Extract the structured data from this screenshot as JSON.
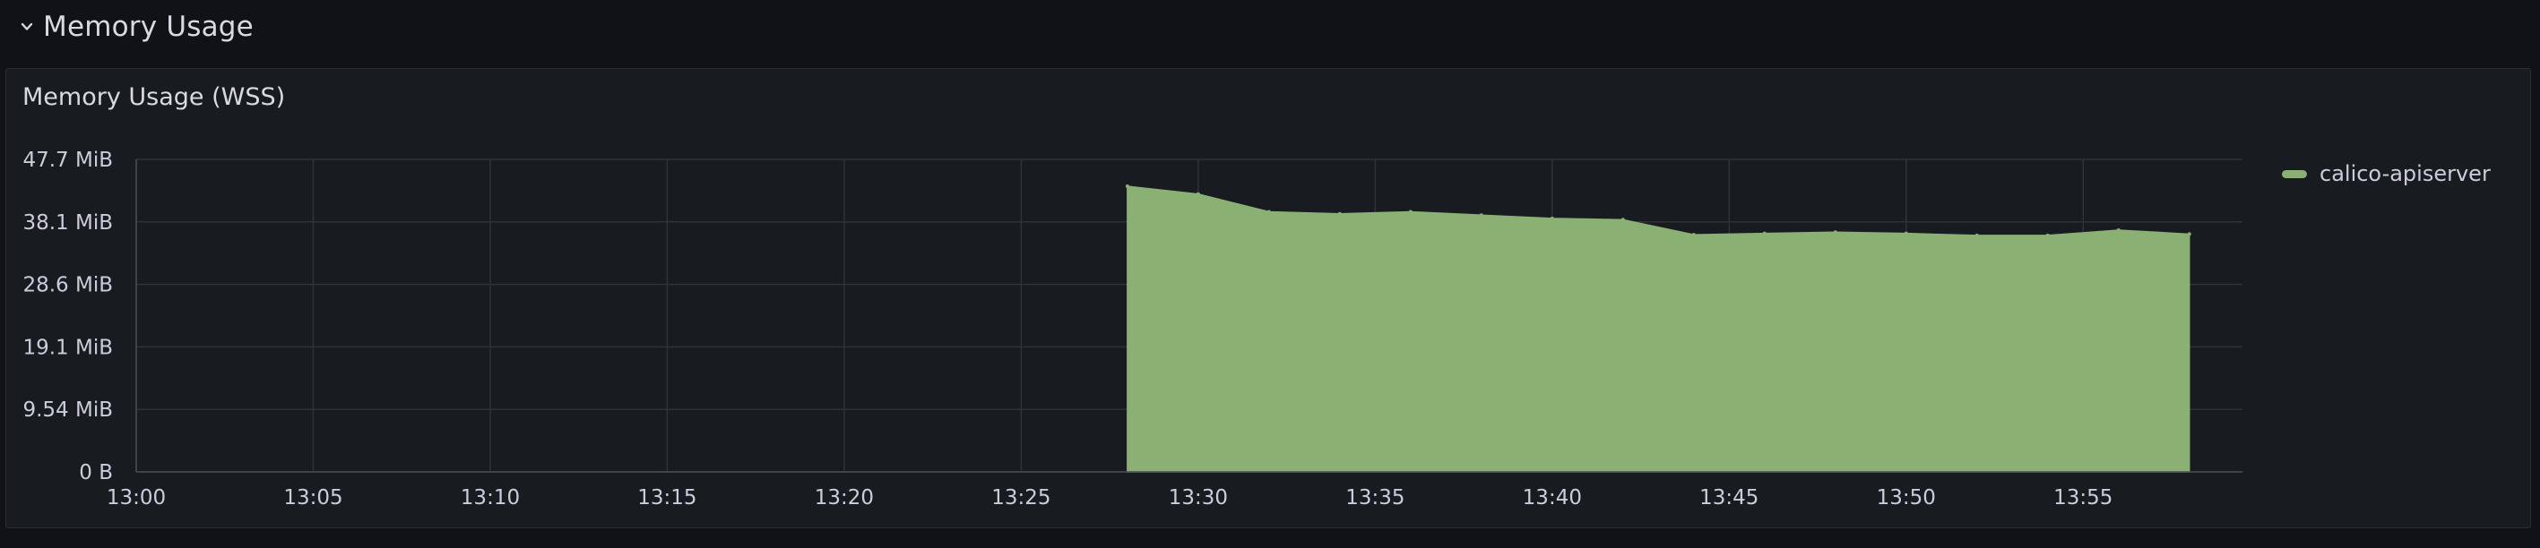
{
  "row": {
    "title": "Memory Usage"
  },
  "panel": {
    "title": "Memory Usage (WSS)"
  },
  "chart_data": {
    "type": "area",
    "title": "Memory Usage (WSS)",
    "xlabel": "",
    "ylabel": "",
    "x_ticks": [
      "13:00",
      "13:05",
      "13:10",
      "13:15",
      "13:20",
      "13:25",
      "13:30",
      "13:35",
      "13:40",
      "13:45",
      "13:50",
      "13:55"
    ],
    "y_ticks": [
      "0 B",
      "9.54 MiB",
      "19.1 MiB",
      "28.6 MiB",
      "38.1 MiB",
      "47.7 MiB"
    ],
    "xlim": [
      "13:00",
      "13:59.5"
    ],
    "ylim": [
      0,
      47.7
    ],
    "y_unit": "MiB",
    "grid": true,
    "legend_position": "right",
    "series": [
      {
        "name": "calico-apiserver",
        "color": "#8ab173",
        "x": [
          "13:28",
          "13:30",
          "13:32",
          "13:34",
          "13:36",
          "13:38",
          "13:40",
          "13:42",
          "13:44",
          "13:46",
          "13:48",
          "13:50",
          "13:52",
          "13:54",
          "13:56",
          "13:58"
        ],
        "values": [
          43.6,
          42.4,
          39.7,
          39.4,
          39.7,
          39.2,
          38.7,
          38.5,
          36.2,
          36.4,
          36.6,
          36.4,
          36.1,
          36.1,
          36.9,
          36.3
        ]
      }
    ]
  }
}
